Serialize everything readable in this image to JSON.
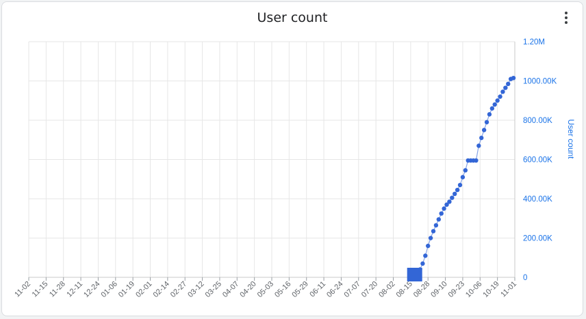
{
  "widget": {
    "title": "User count",
    "menu_icon": "more-vert-icon"
  },
  "chart_data": {
    "type": "scatter",
    "title": "User count",
    "xlabel": "",
    "ylabel": "User count",
    "y_axis_position": "right",
    "ylim": [
      0,
      1200000
    ],
    "y_ticks": [
      {
        "value": 0,
        "label": "0"
      },
      {
        "value": 200000,
        "label": "200.00K"
      },
      {
        "value": 400000,
        "label": "400.00K"
      },
      {
        "value": 600000,
        "label": "600.00K"
      },
      {
        "value": 800000,
        "label": "800.00K"
      },
      {
        "value": 1000000,
        "label": "1000.00K"
      },
      {
        "value": 1200000,
        "label": "1.20M"
      }
    ],
    "x_ticks": [
      "11-02",
      "11-15",
      "11-28",
      "12-11",
      "12-24",
      "01-06",
      "01-19",
      "02-01",
      "02-14",
      "02-27",
      "03-12",
      "03-25",
      "04-07",
      "04-20",
      "05-03",
      "05-16",
      "05-29",
      "06-11",
      "06-24",
      "07-07",
      "07-20",
      "08-02",
      "08-15",
      "08-28",
      "09-10",
      "09-23",
      "10-06",
      "10-19",
      "11-01"
    ],
    "grid": true,
    "legend": "none",
    "color": "#3366d6",
    "points": [
      {
        "x": "08-18",
        "y": 0,
        "marker": "square"
      },
      {
        "x": "08-22",
        "y": 40000
      },
      {
        "x": "08-24",
        "y": 70000
      },
      {
        "x": "08-26",
        "y": 110000
      },
      {
        "x": "08-28",
        "y": 160000
      },
      {
        "x": "08-30",
        "y": 200000
      },
      {
        "x": "09-01",
        "y": 235000
      },
      {
        "x": "09-03",
        "y": 265000
      },
      {
        "x": "09-05",
        "y": 295000
      },
      {
        "x": "09-07",
        "y": 325000
      },
      {
        "x": "09-09",
        "y": 350000
      },
      {
        "x": "09-11",
        "y": 370000
      },
      {
        "x": "09-13",
        "y": 385000
      },
      {
        "x": "09-15",
        "y": 405000
      },
      {
        "x": "09-17",
        "y": 425000
      },
      {
        "x": "09-19",
        "y": 445000
      },
      {
        "x": "09-21",
        "y": 470000
      },
      {
        "x": "09-23",
        "y": 510000
      },
      {
        "x": "09-25",
        "y": 545000
      },
      {
        "x": "09-27",
        "y": 595000
      },
      {
        "x": "09-29",
        "y": 595000
      },
      {
        "x": "10-01",
        "y": 595000
      },
      {
        "x": "10-03",
        "y": 595000
      },
      {
        "x": "10-05",
        "y": 670000
      },
      {
        "x": "10-07",
        "y": 710000
      },
      {
        "x": "10-09",
        "y": 750000
      },
      {
        "x": "10-11",
        "y": 790000
      },
      {
        "x": "10-13",
        "y": 830000
      },
      {
        "x": "10-15",
        "y": 860000
      },
      {
        "x": "10-17",
        "y": 880000
      },
      {
        "x": "10-19",
        "y": 900000
      },
      {
        "x": "10-21",
        "y": 920000
      },
      {
        "x": "10-23",
        "y": 945000
      },
      {
        "x": "10-25",
        "y": 965000
      },
      {
        "x": "10-27",
        "y": 985000
      },
      {
        "x": "10-29",
        "y": 1010000
      },
      {
        "x": "10-31",
        "y": 1015000
      }
    ]
  }
}
